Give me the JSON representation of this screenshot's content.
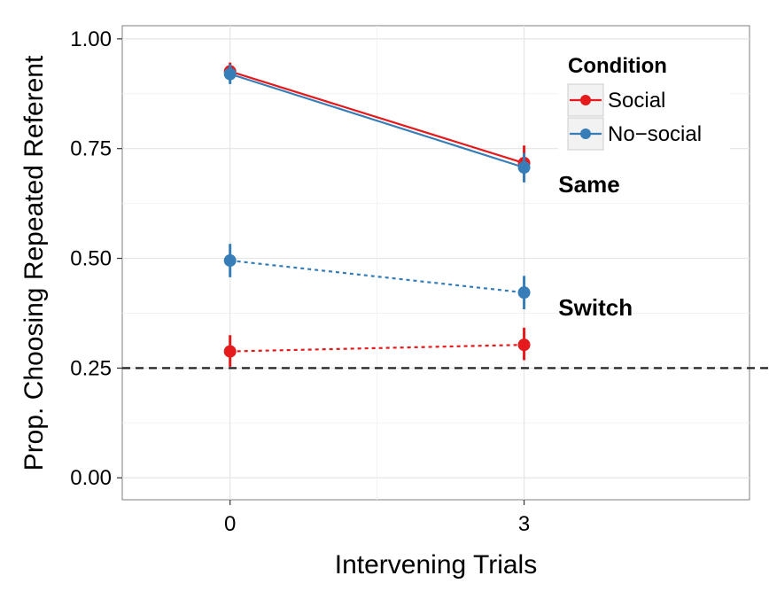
{
  "chart_data": {
    "type": "line",
    "x": [
      0,
      3
    ],
    "xlabel": "Intervening Trials",
    "ylabel": "Prop. Choosing Repeated Referent",
    "xlim": [
      -1.1,
      5.3
    ],
    "ylim": [
      -0.05,
      1.03
    ],
    "x_ticks": [
      "0",
      "3"
    ],
    "y_ticks": [
      "0.00",
      "0.25",
      "0.50",
      "0.75",
      "1.00"
    ],
    "grid": true,
    "reference_line": {
      "y": 0.25,
      "style": "dashed"
    },
    "legend": {
      "title": "Condition",
      "position": "top-right",
      "entries": [
        {
          "label": "Social",
          "color": "#e41a1c"
        },
        {
          "label": "No−social",
          "color": "#377eb8"
        }
      ]
    },
    "annotations": [
      {
        "text": "Same",
        "x": 3.35,
        "y": 0.65
      },
      {
        "text": "Switch",
        "x": 3.35,
        "y": 0.37
      }
    ],
    "series": [
      {
        "condition": "Social",
        "group": "Same",
        "style": "solid",
        "color": "#e41a1c",
        "values": [
          0.926,
          0.717
        ],
        "err_low": [
          0.905,
          0.675
        ],
        "err_high": [
          0.946,
          0.757
        ]
      },
      {
        "condition": "No−social",
        "group": "Same",
        "style": "solid",
        "color": "#377eb8",
        "values": [
          0.92,
          0.707
        ],
        "err_low": [
          0.897,
          0.673
        ],
        "err_high": [
          0.942,
          0.74
        ]
      },
      {
        "condition": "No−social",
        "group": "Switch",
        "style": "dotted",
        "color": "#377eb8",
        "values": [
          0.495,
          0.422
        ],
        "err_low": [
          0.457,
          0.384
        ],
        "err_high": [
          0.533,
          0.46
        ]
      },
      {
        "condition": "Social",
        "group": "Switch",
        "style": "dotted",
        "color": "#e41a1c",
        "values": [
          0.288,
          0.303
        ],
        "err_low": [
          0.253,
          0.268
        ],
        "err_high": [
          0.325,
          0.342
        ]
      }
    ]
  }
}
